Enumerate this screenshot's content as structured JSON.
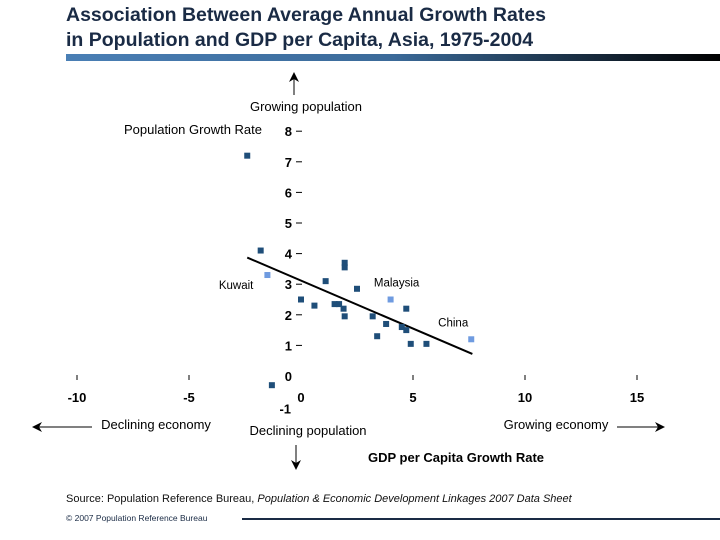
{
  "title": "Association Between Average Annual Growth Rates in Population and GDP per Capita, Asia, 1975-2004",
  "title_lines": [
    "Association Between Average Annual Growth Rates",
    "in Population and GDP per Capita, Asia, 1975-2004"
  ],
  "source_prefix": "Source: Population Reference Bureau, ",
  "source_italic": "Population & Economic Development Linkages 2007 Data Sheet",
  "copyright": "© 2007 Population Reference Bureau",
  "colors": {
    "points": "#1f4e79",
    "highlight": "#6f9be0",
    "trend": "#000000",
    "title": "#1a2b45"
  },
  "chart_data": {
    "type": "scatter",
    "xlabel": "GDP per Capita Growth Rate",
    "ylabel": "Population Growth Rate",
    "xlim": [
      -10,
      15
    ],
    "ylim": [
      -1,
      8
    ],
    "x_ticks": [
      "-10",
      "-5",
      "0",
      "5",
      "10",
      "15"
    ],
    "y_ticks": [
      "-1",
      "0",
      "1",
      "2",
      "3",
      "4",
      "5",
      "6",
      "7",
      "8"
    ],
    "grid": false,
    "annotations": {
      "up": "Growing population",
      "down": "Declining population",
      "left": "Declining economy",
      "right": "Growing economy"
    },
    "points": [
      {
        "x": -2.4,
        "y": 7.2
      },
      {
        "x": -1.8,
        "y": 4.1
      },
      {
        "x": -1.5,
        "y": 3.3,
        "label": "Kuwait",
        "highlight": true
      },
      {
        "x": -1.3,
        "y": -0.3
      },
      {
        "x": 0.0,
        "y": 2.5
      },
      {
        "x": 0.6,
        "y": 2.3
      },
      {
        "x": 1.1,
        "y": 3.1
      },
      {
        "x": 1.5,
        "y": 2.35
      },
      {
        "x": 1.7,
        "y": 2.35
      },
      {
        "x": 1.9,
        "y": 2.2
      },
      {
        "x": 1.95,
        "y": 1.95
      },
      {
        "x": 1.95,
        "y": 3.7
      },
      {
        "x": 1.95,
        "y": 3.55
      },
      {
        "x": 2.5,
        "y": 2.85
      },
      {
        "x": 4.0,
        "y": 2.5,
        "label": "Malaysia",
        "highlight": true
      },
      {
        "x": 4.7,
        "y": 2.2
      },
      {
        "x": 3.2,
        "y": 1.95
      },
      {
        "x": 3.4,
        "y": 1.3
      },
      {
        "x": 3.8,
        "y": 1.7
      },
      {
        "x": 4.5,
        "y": 1.6
      },
      {
        "x": 4.7,
        "y": 1.5
      },
      {
        "x": 4.9,
        "y": 1.05
      },
      {
        "x": 5.6,
        "y": 1.05
      },
      {
        "x": 7.6,
        "y": 1.2,
        "label": "China",
        "highlight": true
      }
    ],
    "trendline": [
      {
        "x": -2.4,
        "y": 3.87
      },
      {
        "x": 7.65,
        "y": 0.72
      }
    ]
  }
}
